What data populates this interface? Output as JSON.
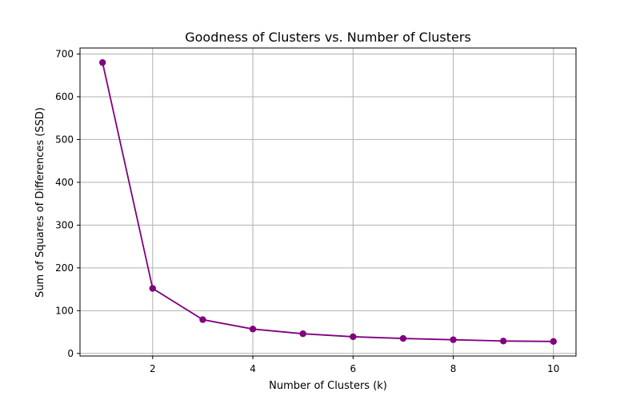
{
  "chart_data": {
    "type": "line",
    "title": "Goodness of Clusters vs. Number of Clusters",
    "xlabel": "Number of Clusters (k)",
    "ylabel": "Sum of Squares of Differences (SSD)",
    "x": [
      1,
      2,
      3,
      4,
      5,
      6,
      7,
      8,
      9,
      10
    ],
    "series": [
      {
        "values": [
          680,
          152,
          79,
          57,
          46,
          39,
          35,
          32,
          29,
          28
        ],
        "color": "#800080",
        "marker": "circle"
      }
    ],
    "xlim": [
      0.55,
      10.45
    ],
    "ylim": [
      -6,
      714
    ],
    "xticks": [
      2,
      4,
      6,
      8,
      10
    ],
    "yticks": [
      0,
      100,
      200,
      300,
      400,
      500,
      600,
      700
    ],
    "grid": true,
    "legend": "none"
  }
}
